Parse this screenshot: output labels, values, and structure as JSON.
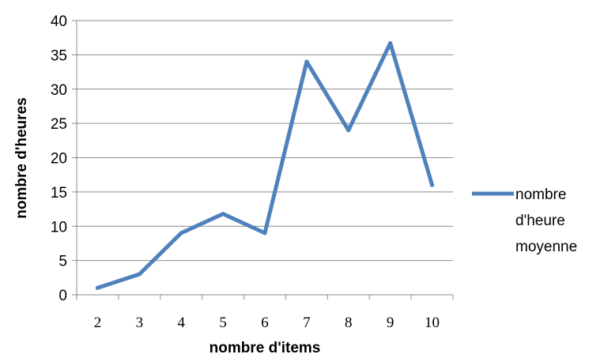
{
  "chart_data": {
    "type": "line",
    "title": "",
    "xlabel": "nombre d'items",
    "ylabel": "nombre d'heures",
    "categories": [
      "2",
      "3",
      "4",
      "5",
      "6",
      "7",
      "8",
      "9",
      "10"
    ],
    "series": [
      {
        "name": "nombre d'heure moyenne",
        "name_lines": [
          "nombre",
          "d'heure",
          "moyenne"
        ],
        "values": [
          1,
          3,
          9,
          11.8,
          9,
          34,
          24,
          36.7,
          16
        ],
        "color": "#4f81bd"
      }
    ],
    "ylim": [
      0,
      40
    ],
    "yticks": [
      0,
      5,
      10,
      15,
      20,
      25,
      30,
      35,
      40
    ],
    "grid": true,
    "legend_position": "right"
  }
}
